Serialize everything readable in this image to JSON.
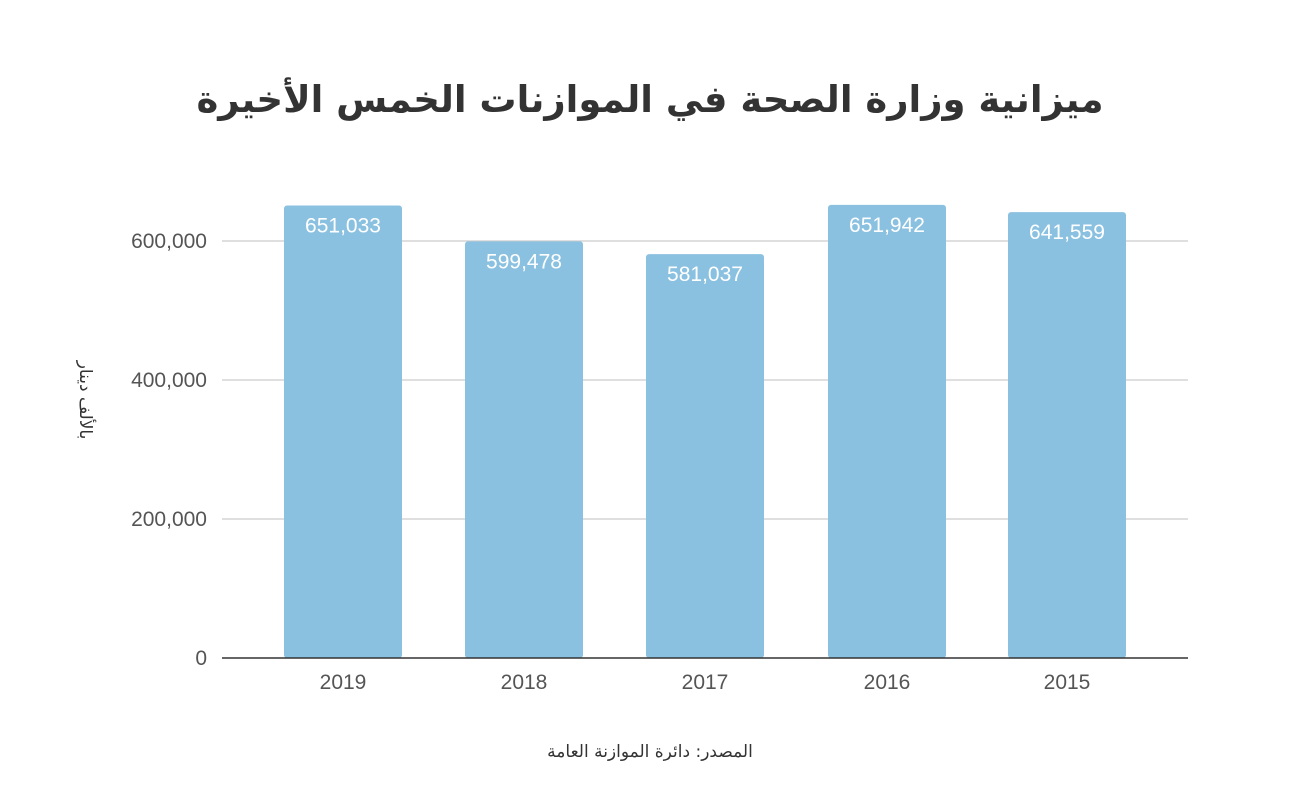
{
  "chart_data": {
    "type": "bar",
    "title": "ميزانية وزارة الصحة في الموازنات الخمس الأخيرة",
    "categories": [
      "2019",
      "2018",
      "2017",
      "2016",
      "2015"
    ],
    "values": [
      651033,
      599478,
      581037,
      651942,
      641559
    ],
    "data_labels": [
      "651,033",
      "599,478",
      "581,037",
      "651,942",
      "641,559"
    ],
    "ylabel": "بالألف دينار",
    "xlabel": "",
    "ylim": [
      0,
      700000
    ],
    "y_ticks": [
      0,
      200000,
      400000,
      600000
    ],
    "y_tick_labels": [
      "0",
      "200,000",
      "400,000",
      "600,000"
    ],
    "grid": true,
    "legend": "none",
    "bar_color": "#8bc1e0",
    "source": "المصدر: دائرة الموازنة العامة"
  }
}
